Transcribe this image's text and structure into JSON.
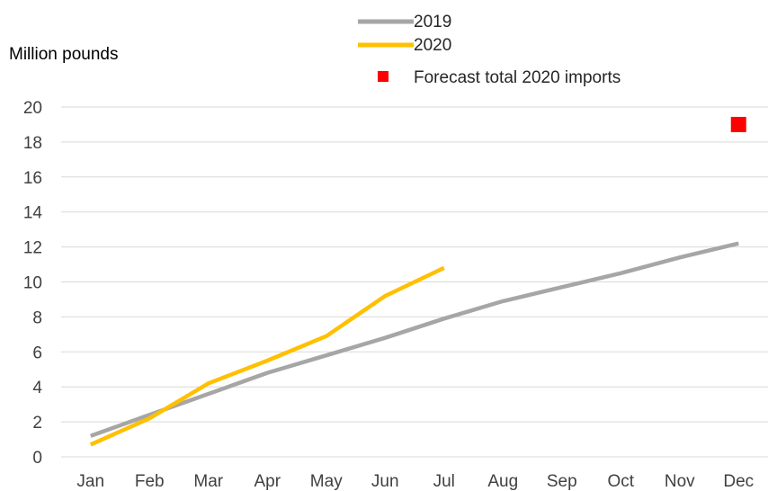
{
  "chart_data": {
    "type": "line",
    "ylabel": "Million pounds",
    "categories": [
      "Jan",
      "Feb",
      "Mar",
      "Apr",
      "May",
      "Jun",
      "Jul",
      "Aug",
      "Sep",
      "Oct",
      "Nov",
      "Dec"
    ],
    "ylim": [
      0,
      20
    ],
    "yticks": [
      "0",
      "2",
      "4",
      "6",
      "8",
      "10",
      "12",
      "14",
      "16",
      "18",
      "20"
    ],
    "grid": true,
    "legend_position": "top",
    "series": [
      {
        "name": "2019",
        "color": "#a6a6a6",
        "values": [
          1.2,
          2.4,
          3.6,
          4.8,
          5.8,
          6.8,
          7.9,
          8.9,
          9.7,
          10.5,
          11.4,
          12.2
        ]
      },
      {
        "name": "2020",
        "color": "#ffc000",
        "values": [
          0.7,
          2.2,
          4.2,
          5.5,
          6.9,
          9.2,
          10.8,
          null,
          null,
          null,
          null,
          null
        ]
      }
    ],
    "points": [
      {
        "name": "Forecast total 2020 imports",
        "color": "#ff0000",
        "x": "Dec",
        "y": 19.0,
        "marker": "square"
      }
    ]
  }
}
